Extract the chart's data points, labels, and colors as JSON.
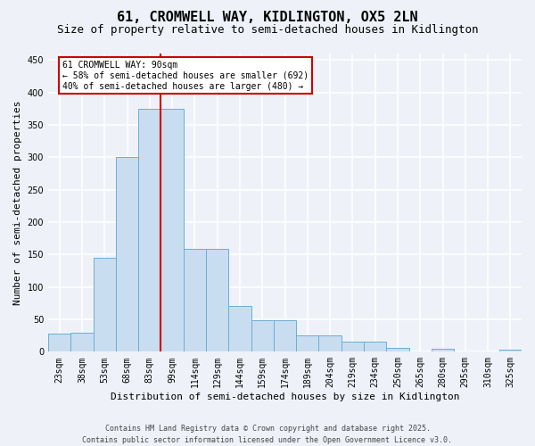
{
  "title": "61, CROMWELL WAY, KIDLINGTON, OX5 2LN",
  "subtitle": "Size of property relative to semi-detached houses in Kidlington",
  "xlabel": "Distribution of semi-detached houses by size in Kidlington",
  "ylabel": "Number of semi-detached properties",
  "categories": [
    "23sqm",
    "38sqm",
    "53sqm",
    "68sqm",
    "83sqm",
    "99sqm",
    "114sqm",
    "129sqm",
    "144sqm",
    "159sqm",
    "174sqm",
    "189sqm",
    "204sqm",
    "219sqm",
    "234sqm",
    "250sqm",
    "265sqm",
    "280sqm",
    "295sqm",
    "310sqm",
    "325sqm"
  ],
  "values": [
    28,
    30,
    145,
    300,
    375,
    375,
    158,
    158,
    70,
    48,
    48,
    25,
    25,
    15,
    15,
    6,
    1,
    4,
    1,
    1,
    3
  ],
  "bar_color": "#c9ddf0",
  "bar_edge_color": "#6aaed6",
  "vline_x_index": 4,
  "vline_color": "#cc0000",
  "annotation_text": "61 CROMWELL WAY: 90sqm\n← 58% of semi-detached houses are smaller (692)\n40% of semi-detached houses are larger (480) →",
  "annotation_box_facecolor": "#ffffff",
  "annotation_box_edgecolor": "#cc0000",
  "ylim": [
    0,
    460
  ],
  "yticks": [
    0,
    50,
    100,
    150,
    200,
    250,
    300,
    350,
    400,
    450
  ],
  "footer_line1": "Contains HM Land Registry data © Crown copyright and database right 2025.",
  "footer_line2": "Contains public sector information licensed under the Open Government Licence v3.0.",
  "background_color": "#eef2f8",
  "plot_bg_color": "#eef2f8",
  "grid_color": "#ffffff",
  "title_fontsize": 11,
  "subtitle_fontsize": 9,
  "axis_label_fontsize": 8,
  "tick_fontsize": 7,
  "annotation_fontsize": 7,
  "footer_fontsize": 6
}
